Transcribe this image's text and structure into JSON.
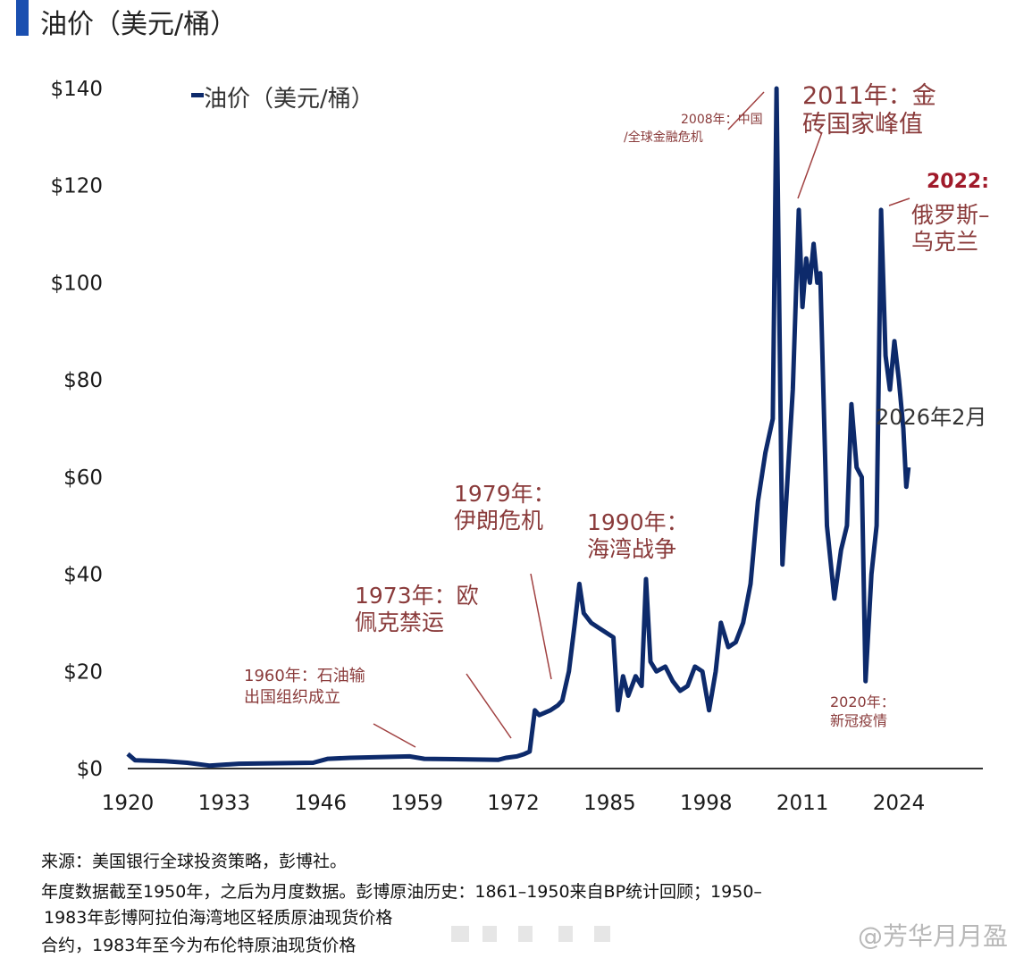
{
  "header": {
    "title": "油价（美元/桶）",
    "accent_color": "#1a4fb0"
  },
  "chart_data": {
    "type": "line",
    "title": "",
    "xlabel": "",
    "ylabel": "",
    "legend": {
      "label": "油价（美元/桶）",
      "position": "top-left"
    },
    "xlim": [
      1920,
      2035
    ],
    "ylim": [
      0,
      140
    ],
    "x_ticks": [
      1920,
      1933,
      1946,
      1959,
      1972,
      1985,
      1998,
      2011,
      2024
    ],
    "y_ticks": [
      "$0",
      "$20",
      "$40",
      "$60",
      "$80",
      "$100",
      "$120",
      "$140"
    ],
    "y_tick_values": [
      0,
      20,
      40,
      60,
      80,
      100,
      120,
      140
    ],
    "grid": false,
    "series_color": "#0d2a6b",
    "series": [
      {
        "name": "油价（美元/桶）",
        "x": [
          1920,
          1921,
          1925,
          1928,
          1931,
          1935,
          1945,
          1947,
          1950,
          1958,
          1960,
          1970,
          1971,
          1972.5,
          1973.5,
          1974.2,
          1974.9,
          1975.5,
          1977,
          1978,
          1978.6,
          1979.5,
          1980.3,
          1980.9,
          1981.5,
          1982.5,
          1983.5,
          1984.5,
          1985.5,
          1986.1,
          1986.8,
          1987.5,
          1988.5,
          1989.3,
          1989.9,
          1990.5,
          1991.3,
          1992.5,
          1993.5,
          1994.5,
          1995.5,
          1996.5,
          1997.5,
          1998.4,
          1999.3,
          2000,
          2001,
          2002,
          2003,
          2004,
          2005,
          2006,
          2007,
          2007.5,
          2008.3,
          2009,
          2009.7,
          2010.5,
          2011,
          2011.5,
          2012,
          2012.5,
          2013,
          2013.4,
          2014.3,
          2015.3,
          2016.2,
          2017,
          2017.6,
          2018.3,
          2019,
          2019.5,
          2020.3,
          2021,
          2021.6,
          2022.2,
          2022.8,
          2023.4,
          2024,
          2024.6,
          2025,
          2025.3
        ],
        "y": [
          3,
          1.7,
          1.5,
          1.2,
          0.6,
          1,
          1.2,
          2,
          2.2,
          2.5,
          2,
          1.8,
          2.2,
          2.5,
          3,
          3.5,
          12,
          11,
          12,
          13,
          14,
          20,
          30,
          38,
          32,
          30,
          29,
          28,
          27,
          12,
          19,
          15,
          19,
          17,
          39,
          22,
          20,
          21,
          18,
          16,
          17,
          21,
          20,
          12,
          20,
          30,
          25,
          26,
          30,
          38,
          55,
          65,
          72,
          140,
          42,
          60,
          78,
          115,
          95,
          105,
          100,
          108,
          100,
          102,
          50,
          35,
          45,
          50,
          75,
          62,
          60,
          18,
          40,
          50,
          115,
          85,
          78,
          88,
          80,
          70,
          58,
          62
        ]
      }
    ],
    "annotations": {
      "a2008": [
        "2008年：中国",
        "/全球金融危机"
      ],
      "a2011": [
        "2011年：金",
        "砖国家峰值"
      ],
      "a2022_year": "2022:",
      "a2022": [
        "俄罗斯–",
        "乌克兰"
      ],
      "a2026": "2026年2月",
      "a1979": [
        "1979年：",
        "伊朗危机"
      ],
      "a1990": [
        "1990年：",
        "海湾战争"
      ],
      "a1973": [
        "1973年：欧",
        "佩克禁运"
      ],
      "a1960": [
        "1960年：石油输",
        "出国组织成立"
      ],
      "a2020": [
        "2020年：",
        "新冠疫情"
      ]
    }
  },
  "footer": {
    "lines": [
      "来源：美国银行全球投资策略，彭博社。",
      "年度数据截至1950年，之后为月度数据。彭博原油历史：1861–1950来自BP统计回顾；1950–",
      "1983年彭博阿拉伯海湾地区轻质原油现货价格",
      "合约，1983年至今为布伦特原油现货价格"
    ],
    "watermark": "@芳华月月盈"
  }
}
